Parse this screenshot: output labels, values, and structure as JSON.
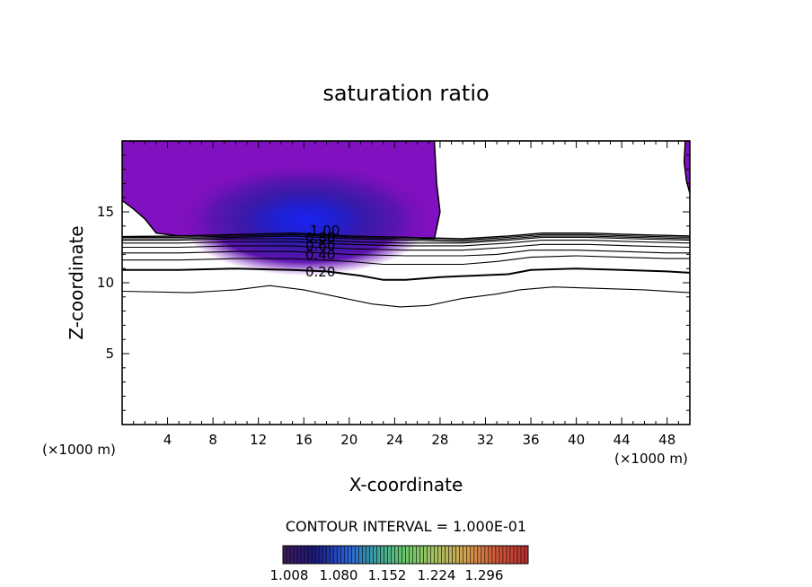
{
  "chart_data": {
    "type": "contour",
    "title": "saturation ratio",
    "xlabel": "X-coordinate",
    "ylabel": "Z-coordinate",
    "x_unit_left": "(×1000 m)",
    "x_unit_right": "(×1000 m)",
    "xlim": [
      0,
      50
    ],
    "ylim": [
      0,
      20
    ],
    "x_ticks": [
      4,
      8,
      12,
      16,
      20,
      24,
      28,
      32,
      36,
      40,
      44,
      48
    ],
    "x_tick_labels": [
      "4",
      "8",
      "12",
      "16",
      "20",
      "24",
      "28",
      "32",
      "36",
      "40",
      "44",
      "48"
    ],
    "y_ticks": [
      5,
      10,
      15
    ],
    "y_tick_labels": [
      "5",
      "10",
      "15"
    ],
    "contour_interval_text": "CONTOUR INTERVAL = 1.000E-01",
    "contour_labels": [
      "0.20",
      "0.40",
      "0.60",
      "0.80",
      "1.00"
    ],
    "contour_lines": [
      {
        "level": 0.1,
        "points": [
          [
            0,
            9.4
          ],
          [
            6,
            9.3
          ],
          [
            10,
            9.5
          ],
          [
            13,
            9.8
          ],
          [
            16,
            9.5
          ],
          [
            19,
            9.0
          ],
          [
            22,
            8.5
          ],
          [
            24.5,
            8.3
          ],
          [
            27,
            8.4
          ],
          [
            30,
            8.9
          ],
          [
            33,
            9.2
          ],
          [
            35,
            9.5
          ],
          [
            38,
            9.7
          ],
          [
            42,
            9.6
          ],
          [
            46,
            9.5
          ],
          [
            50,
            9.3
          ]
        ]
      },
      {
        "level": 0.2,
        "points": [
          [
            0,
            10.9
          ],
          [
            5,
            10.9
          ],
          [
            10,
            11.0
          ],
          [
            15,
            10.9
          ],
          [
            18,
            10.8
          ],
          [
            21,
            10.5
          ],
          [
            23,
            10.2
          ],
          [
            25,
            10.2
          ],
          [
            28,
            10.4
          ],
          [
            31,
            10.5
          ],
          [
            34,
            10.6
          ],
          [
            36,
            10.9
          ],
          [
            40,
            11.0
          ],
          [
            44,
            10.9
          ],
          [
            48,
            10.8
          ],
          [
            50,
            10.7
          ]
        ]
      },
      {
        "level": 0.3,
        "points": [
          [
            0,
            11.6
          ],
          [
            5,
            11.6
          ],
          [
            10,
            11.7
          ],
          [
            15,
            11.7
          ],
          [
            20,
            11.5
          ],
          [
            23,
            11.3
          ],
          [
            26,
            11.3
          ],
          [
            30,
            11.3
          ],
          [
            33,
            11.5
          ],
          [
            36,
            11.8
          ],
          [
            40,
            11.9
          ],
          [
            44,
            11.8
          ],
          [
            48,
            11.7
          ],
          [
            50,
            11.7
          ]
        ]
      },
      {
        "level": 0.4,
        "points": [
          [
            0,
            12.1
          ],
          [
            5,
            12.1
          ],
          [
            10,
            12.2
          ],
          [
            15,
            12.2
          ],
          [
            20,
            12.0
          ],
          [
            25,
            11.9
          ],
          [
            30,
            11.9
          ],
          [
            33,
            12.0
          ],
          [
            36,
            12.3
          ],
          [
            40,
            12.3
          ],
          [
            44,
            12.2
          ],
          [
            48,
            12.1
          ],
          [
            50,
            12.1
          ]
        ]
      },
      {
        "level": 0.5,
        "points": [
          [
            0,
            12.5
          ],
          [
            5,
            12.5
          ],
          [
            10,
            12.6
          ],
          [
            15,
            12.6
          ],
          [
            20,
            12.4
          ],
          [
            25,
            12.3
          ],
          [
            30,
            12.3
          ],
          [
            34,
            12.5
          ],
          [
            37,
            12.7
          ],
          [
            41,
            12.7
          ],
          [
            45,
            12.6
          ],
          [
            50,
            12.5
          ]
        ]
      },
      {
        "level": 0.6,
        "points": [
          [
            0,
            12.8
          ],
          [
            5,
            12.8
          ],
          [
            10,
            12.9
          ],
          [
            15,
            12.9
          ],
          [
            20,
            12.7
          ],
          [
            25,
            12.6
          ],
          [
            30,
            12.6
          ],
          [
            34,
            12.8
          ],
          [
            37,
            13.0
          ],
          [
            41,
            13.0
          ],
          [
            45,
            12.9
          ],
          [
            50,
            12.8
          ]
        ]
      },
      {
        "level": 0.7,
        "points": [
          [
            0,
            13.0
          ],
          [
            5,
            13.0
          ],
          [
            10,
            13.1
          ],
          [
            15,
            13.1
          ],
          [
            20,
            12.9
          ],
          [
            25,
            12.8
          ],
          [
            30,
            12.8
          ],
          [
            34,
            13.0
          ],
          [
            37,
            13.2
          ],
          [
            41,
            13.2
          ],
          [
            45,
            13.1
          ],
          [
            50,
            13.0
          ]
        ]
      },
      {
        "level": 0.8,
        "points": [
          [
            0,
            13.1
          ],
          [
            5,
            13.1
          ],
          [
            10,
            13.2
          ],
          [
            15,
            13.3
          ],
          [
            20,
            13.1
          ],
          [
            25,
            13.0
          ],
          [
            30,
            12.9
          ],
          [
            34,
            13.1
          ],
          [
            37,
            13.3
          ],
          [
            41,
            13.3
          ],
          [
            45,
            13.2
          ],
          [
            50,
            13.1
          ]
        ]
      },
      {
        "level": 0.9,
        "points": [
          [
            0,
            13.2
          ],
          [
            5,
            13.2
          ],
          [
            10,
            13.3
          ],
          [
            15,
            13.4
          ],
          [
            20,
            13.2
          ],
          [
            25,
            13.1
          ],
          [
            30,
            13.0
          ],
          [
            34,
            13.2
          ],
          [
            37,
            13.4
          ],
          [
            41,
            13.4
          ],
          [
            45,
            13.3
          ],
          [
            50,
            13.2
          ]
        ]
      },
      {
        "level": 1.0,
        "points": [
          [
            0,
            13.25
          ],
          [
            5,
            13.3
          ],
          [
            10,
            13.4
          ],
          [
            15,
            13.5
          ],
          [
            20,
            13.3
          ],
          [
            25,
            13.2
          ],
          [
            30,
            13.1
          ],
          [
            34,
            13.3
          ],
          [
            37,
            13.5
          ],
          [
            41,
            13.5
          ],
          [
            45,
            13.4
          ],
          [
            50,
            13.3
          ]
        ]
      }
    ],
    "shaded_regions": [
      {
        "name": "main-supersaturated-region",
        "outline": [
          [
            0,
            20
          ],
          [
            27.5,
            20
          ],
          [
            27.7,
            17
          ],
          [
            28,
            15
          ],
          [
            27.5,
            13.1
          ],
          [
            25,
            13.2
          ],
          [
            20,
            13.3
          ],
          [
            15,
            13.5
          ],
          [
            10,
            13.4
          ],
          [
            5,
            13.3
          ],
          [
            3,
            13.5
          ],
          [
            2,
            14.5
          ],
          [
            1,
            15.2
          ],
          [
            0,
            15.8
          ]
        ]
      },
      {
        "name": "edge-supersaturated-region",
        "outline": [
          [
            49.6,
            20
          ],
          [
            50,
            20
          ],
          [
            50,
            16.3
          ],
          [
            49.7,
            17.2
          ],
          [
            49.5,
            18.5
          ]
        ]
      }
    ],
    "max_point": [
      17,
      13.8
    ],
    "colorbar": {
      "tick_labels": [
        "1.008",
        "1.080",
        "1.152",
        "1.224",
        "1.296"
      ],
      "colors": [
        "#3c1a5a",
        "#1a1a7a",
        "#2a5ad8",
        "#3aa0a0",
        "#6ac86a",
        "#a8c060",
        "#d4a050",
        "#d05838",
        "#b83030"
      ]
    },
    "fill_colors": {
      "outer": "#8010c0",
      "inner": "#1028e8"
    }
  }
}
